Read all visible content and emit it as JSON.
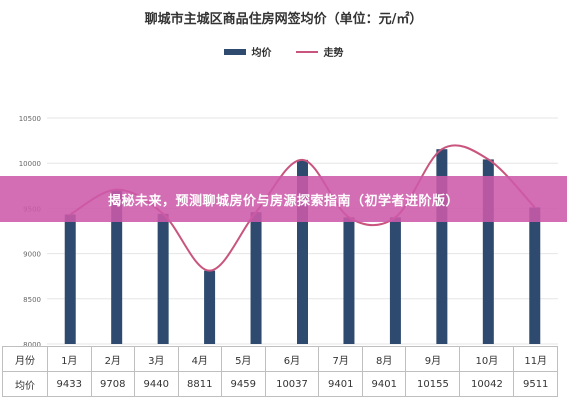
{
  "title": "聊城市主城区商品住房网签均价（单位：元/㎡）",
  "legend": {
    "bar": "均价",
    "line": "走势"
  },
  "banner": "揭秘未来，预测聊城房价与房源探索指南（初学者进阶版）",
  "table": {
    "row1_header": "月份",
    "row2_header": "均价",
    "months": [
      "1月",
      "2月",
      "3月",
      "4月",
      "5月",
      "6月",
      "7月",
      "8月",
      "9月",
      "10月",
      "11月"
    ],
    "values": [
      "9433",
      "9708",
      "9440",
      "8811",
      "9459",
      "10037",
      "9401",
      "9401",
      "10155",
      "10042",
      "9511"
    ]
  },
  "colors": {
    "bar": "#2e4a6e",
    "line": "#c9557e",
    "banner": "#cd5aaa"
  },
  "chart_data": {
    "type": "bar",
    "categories": [
      "1月",
      "2月",
      "3月",
      "4月",
      "5月",
      "6月",
      "7月",
      "8月",
      "9月",
      "10月",
      "11月"
    ],
    "series": [
      {
        "name": "均价",
        "type": "bar",
        "values": [
          9433,
          9708,
          9440,
          8811,
          9459,
          10037,
          9401,
          9401,
          10155,
          10042,
          9511
        ]
      },
      {
        "name": "走势",
        "type": "line",
        "smooth": true,
        "values": [
          9433,
          9708,
          9440,
          8811,
          9459,
          10037,
          9401,
          9401,
          10155,
          10042,
          9511
        ]
      }
    ],
    "title": "聊城市主城区商品住房网签均价（单位：元/㎡）",
    "xlabel": "",
    "ylabel": "",
    "ylim": [
      8000,
      10500
    ],
    "yticks": [
      8000,
      8500,
      9000,
      9500,
      10000,
      10500
    ],
    "grid": true,
    "legend_position": "top-center"
  }
}
